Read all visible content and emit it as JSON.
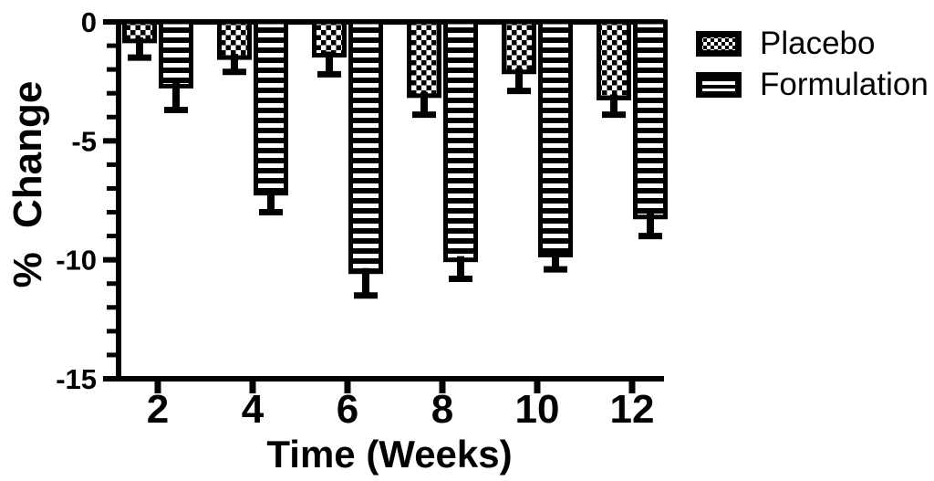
{
  "style": {
    "ink": "#000000",
    "background": "#ffffff"
  },
  "chart_data": {
    "type": "bar",
    "title": "",
    "xlabel": "Time (Weeks)",
    "ylabel": "% Change",
    "categories": [
      "2",
      "4",
      "6",
      "8",
      "10",
      "12"
    ],
    "series": [
      {
        "name": "Placebo",
        "pattern": "checkerboard",
        "values": [
          -0.8,
          -1.5,
          -1.4,
          -3.1,
          -2.1,
          -3.2
        ],
        "errors": [
          0.7,
          0.6,
          0.8,
          0.8,
          0.8,
          0.7
        ]
      },
      {
        "name": "Formulation",
        "pattern": "horizontal-stripes",
        "values": [
          -2.7,
          -7.2,
          -10.5,
          -10.0,
          -9.8,
          -8.2
        ],
        "errors": [
          1.0,
          0.8,
          1.0,
          0.8,
          0.6,
          0.8
        ]
      }
    ],
    "ylim": [
      -15,
      0
    ],
    "yticks": [
      0,
      -5,
      -10,
      -15
    ],
    "ytick_labels": [
      "0",
      "-5",
      "-10",
      "-15"
    ],
    "minor_tick_interval": 1,
    "error_bars": "downward, capped",
    "grid": false,
    "legend_position": "outside-top-right"
  }
}
